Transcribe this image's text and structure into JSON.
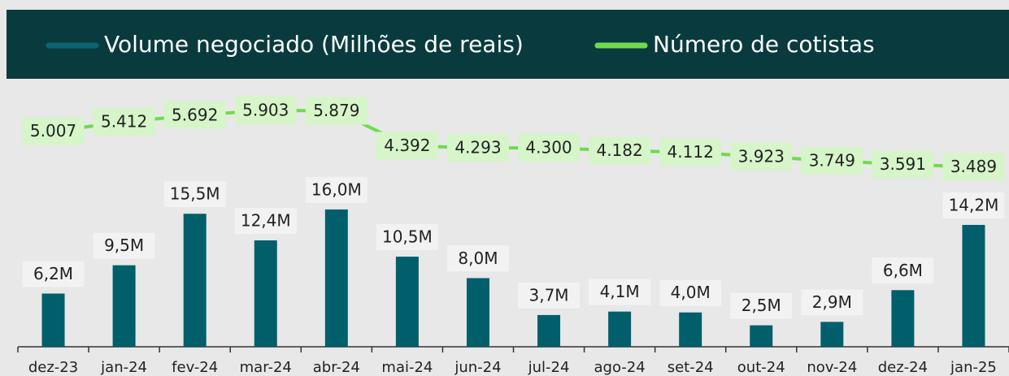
{
  "chart_data": {
    "type": "bar",
    "categories": [
      "dez-23",
      "jan-24",
      "fev-24",
      "mar-24",
      "abr-24",
      "mai-24",
      "jun-24",
      "jul-24",
      "ago-24",
      "set-24",
      "out-24",
      "nov-24",
      "dez-24",
      "jan-25"
    ],
    "series": [
      {
        "name": "Volume negociado (Milhões de reais)",
        "type": "bar",
        "color": "#005f6b",
        "values": [
          6.2,
          9.5,
          15.5,
          12.4,
          16.0,
          10.5,
          8.0,
          3.7,
          4.1,
          4.0,
          2.5,
          2.9,
          6.6,
          14.2
        ],
        "value_labels": [
          "6,2M",
          "9,5M",
          "15,5M",
          "12,4M",
          "16,0M",
          "10,5M",
          "8,0M",
          "3,7M",
          "4,1M",
          "4,0M",
          "2,5M",
          "2,9M",
          "6,6M",
          "14,2M"
        ]
      },
      {
        "name": "Número de cotistas",
        "type": "line",
        "axis": "y2",
        "color": "#6ddc4a",
        "values": [
          5007,
          5412,
          5692,
          5903,
          5879,
          4392,
          4293,
          4300,
          4182,
          4112,
          3923,
          3749,
          3591,
          3489
        ],
        "value_labels": [
          "5.007",
          "5.412",
          "5.692",
          "5.903",
          "5.879",
          "4.392",
          "4.293",
          "4.300",
          "4.182",
          "4.112",
          "3.923",
          "3.749",
          "3.591",
          "3.489"
        ]
      }
    ],
    "ylim": [
      0,
      30
    ],
    "y2lim": [
      -4200,
      6800
    ],
    "legend": "top"
  }
}
